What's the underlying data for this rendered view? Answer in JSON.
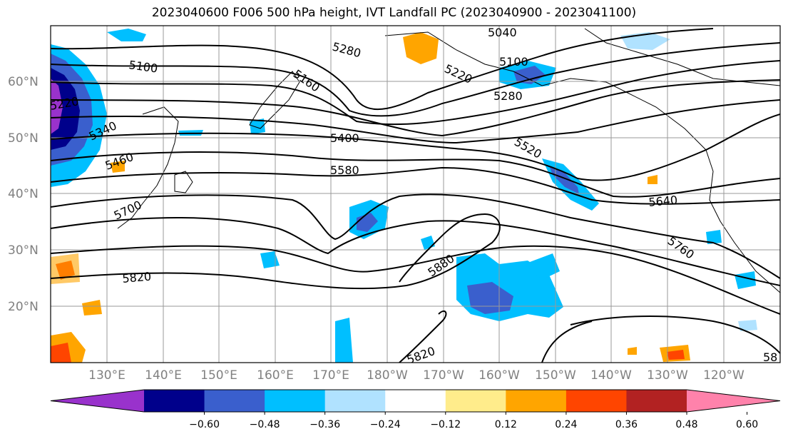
{
  "title": "2023040600 F006 500 hPa height, IVT Landfall PC (2023040900 - 2023041100)",
  "lat_labels": [
    "60°N",
    "50°N",
    "40°N",
    "30°N",
    "20°N"
  ],
  "lon_labels": [
    "130°E",
    "140°E",
    "150°E",
    "160°E",
    "170°E",
    "180°W",
    "170°W",
    "160°W",
    "150°W",
    "140°W",
    "130°W",
    "120°W"
  ],
  "contour_labels": [
    "5040",
    "5100",
    "5100",
    "5160",
    "5220",
    "5220",
    "5280",
    "5280",
    "5340",
    "5400",
    "5460",
    "5520",
    "5580",
    "5640",
    "5700",
    "5760",
    "5820",
    "5820",
    "5880",
    "58"
  ],
  "colorbar": {
    "ticks": [
      "−0.60",
      "−0.48",
      "−0.36",
      "−0.24",
      "−0.12",
      "0.12",
      "0.24",
      "0.36",
      "0.48",
      "0.60"
    ],
    "colors": [
      "#9932cc",
      "#00008b",
      "#3a5fcd",
      "#00bfff",
      "#b0e2ff",
      "#ffffff",
      "#ffec8b",
      "#ffa500",
      "#ff4500",
      "#b22222",
      "#ff82ab"
    ]
  }
}
